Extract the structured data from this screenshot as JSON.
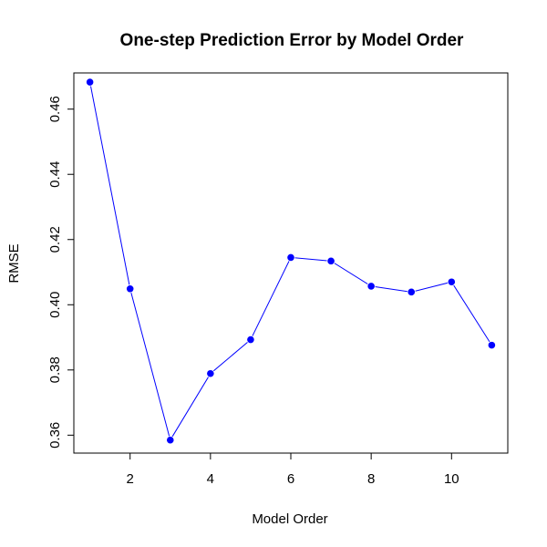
{
  "chart_data": {
    "type": "line",
    "title": "One-step Prediction Error by Model Order",
    "xlabel": "Model Order",
    "ylabel": "RMSE",
    "x": [
      1,
      2,
      3,
      4,
      5,
      6,
      7,
      8,
      9,
      10,
      11
    ],
    "series": [
      {
        "values": [
          0.4683,
          0.4049,
          0.3585,
          0.3789,
          0.3893,
          0.4145,
          0.4134,
          0.4057,
          0.4039,
          0.407,
          0.3876
        ]
      }
    ],
    "xlim": [
      0.6,
      11.4
    ],
    "ylim": [
      0.3545,
      0.4711
    ],
    "xticks": [
      2,
      4,
      6,
      8,
      10
    ],
    "xtick_labels": [
      "2",
      "4",
      "6",
      "8",
      "10"
    ],
    "yticks": [
      0.36,
      0.38,
      0.4,
      0.42,
      0.44,
      0.46
    ],
    "ytick_labels": [
      "0.36",
      "0.38",
      "0.40",
      "0.42",
      "0.44",
      "0.46"
    ],
    "grid": false,
    "legend": "none",
    "line_color": "#0000ff",
    "marker_color": "#0000ff"
  }
}
